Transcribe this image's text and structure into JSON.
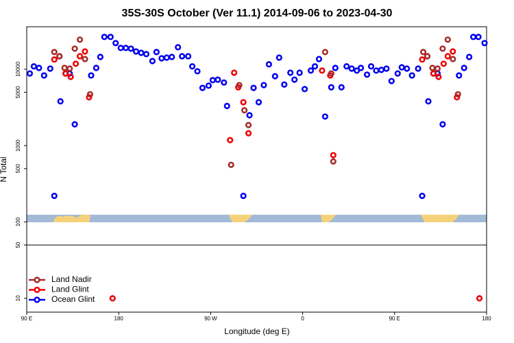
{
  "chart_data": {
    "type": "scatter",
    "title": "35S-30S October (Ver 11.1)   2014-09-06 to 2023-04-30",
    "x_label": "Longitude (deg E)",
    "y_label": "N Total",
    "log_y": true,
    "legend": "lower-left",
    "xlim": [
      90,
      540
    ],
    "ylim": [
      6.6,
      36000
    ],
    "xticks": [
      {
        "value": 90,
        "label": "90 E"
      },
      180,
      {
        "value": 270,
        "label": "90 W"
      },
      {
        "value": 360,
        "label": "0"
      },
      {
        "value": 450,
        "label": "90 E"
      },
      {
        "value": 540,
        "label": "180"
      }
    ],
    "yticks": [
      10,
      50,
      100,
      500,
      1000,
      5000,
      10000
    ],
    "reference_line": 50,
    "series": [
      {
        "name": "Ocean Glint",
        "color": "#0000ee",
        "x": [
          93,
          97,
          102,
          107,
          113,
          117,
          123,
          128,
          132,
          137,
          153,
          158,
          162,
          166,
          172,
          177,
          182,
          187,
          192,
          197,
          202,
          207,
          213,
          217,
          222,
          227,
          232,
          238,
          242,
          248,
          252,
          257,
          262,
          268,
          272,
          277,
          283,
          286,
          302,
          308,
          312,
          317,
          322,
          327,
          333,
          337,
          342,
          348,
          352,
          357,
          362,
          368,
          372,
          376,
          382,
          388,
          392,
          398,
          403,
          408,
          413,
          417,
          423,
          427,
          432,
          437,
          442,
          447,
          453,
          457,
          462,
          467,
          473,
          477,
          483,
          488,
          492,
          497,
          513,
          518,
          523,
          527,
          532,
          538
        ],
        "values": [
          8800,
          10900,
          10400,
          8300,
          10200,
          220,
          3800,
          8800,
          8800,
          1900,
          8300,
          10400,
          14500,
          26500,
          26500,
          22000,
          19000,
          19000,
          18600,
          17100,
          16400,
          15800,
          12800,
          16800,
          13900,
          14200,
          14500,
          19400,
          14800,
          14800,
          10900,
          9400,
          5700,
          6100,
          7200,
          7300,
          6700,
          3300,
          220,
          2500,
          5700,
          3700,
          6200,
          11600,
          8100,
          14200,
          6300,
          9000,
          7300,
          9000,
          5500,
          9600,
          10900,
          13600,
          2400,
          5800,
          10400,
          5800,
          10900,
          10200,
          9600,
          10400,
          8500,
          10900,
          9600,
          9800,
          10200,
          7000,
          8800,
          10600,
          10200,
          8300,
          10200,
          220,
          3800,
          8800,
          8800,
          1900,
          8300,
          10400,
          14500,
          26500,
          26500,
          22000
        ]
      },
      {
        "name": "Land Glint",
        "color": "#ee0000",
        "x": [
          117,
          122,
          128,
          133,
          138,
          142,
          147,
          151,
          174,
          289,
          293,
          297,
          302,
          307,
          379,
          387,
          390,
          477,
          482,
          488,
          493,
          498,
          502,
          507,
          511,
          533
        ],
        "values": [
          13400,
          14800,
          8800,
          7950,
          11800,
          14800,
          17100,
          4300,
          10,
          1180,
          9000,
          5800,
          3700,
          1450,
          9600,
          8300,
          750,
          13400,
          14800,
          8800,
          7950,
          11800,
          14800,
          17100,
          4300,
          10
        ]
      },
      {
        "name": "Land Nadir",
        "color": "#a52a2a",
        "x": [
          117,
          122,
          127,
          132,
          137,
          142,
          147,
          152,
          290,
          298,
          303,
          307,
          382,
          388,
          390,
          478,
          482,
          487,
          492,
          497,
          502,
          507,
          512
        ],
        "values": [
          16800,
          14800,
          10400,
          10200,
          18600,
          24400,
          13600,
          4700,
          560,
          6200,
          2900,
          1860,
          16800,
          8800,
          620,
          16800,
          14800,
          10400,
          10200,
          18600,
          24400,
          13600,
          4700
        ]
      }
    ]
  }
}
